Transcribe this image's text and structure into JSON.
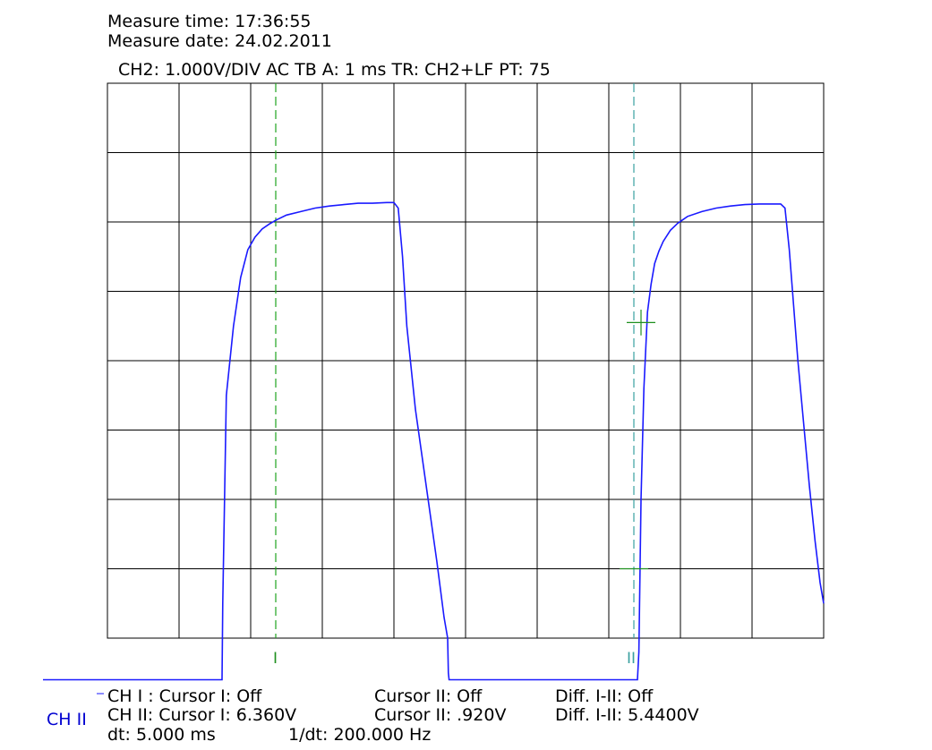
{
  "header": {
    "measure_time": "Measure time: 17:36:55",
    "measure_date": "Measure date: 24.02.2011",
    "settings": "CH2: 1.000V/DIV AC   TB A: 1 ms  TR: CH2+LF  PT: 75"
  },
  "channel_tag": "CH II",
  "cursor_marks": {
    "cursor_1": "I",
    "cursor_2": "II"
  },
  "readout": {
    "ch1_label": "CH I :  Cursor I: Off",
    "ch1_cursor2": "Cursor II: Off",
    "ch1_diff": "Diff. I-II: Off",
    "ch2_label": "CH II:  Cursor I: 6.360V",
    "ch2_cursor2": "Cursor II: .920V",
    "ch2_diff": "Diff. I-II: 5.4400V",
    "dt": "dt: 5.000 ms",
    "inv_dt": "1/dt: 200.000 Hz"
  },
  "colors": {
    "trace": "#1a1aff",
    "grid": "#000000",
    "cursor_1": "#1fa31f",
    "cursor_2": "#3aa0a0",
    "cursor_cross": "#1f8f1f",
    "channel_text": "#0000d0"
  },
  "chart_data": {
    "type": "line",
    "x_divisions": 10,
    "y_divisions": 8,
    "x_range_div": [
      0,
      10
    ],
    "y_range_div": [
      -4,
      4
    ],
    "grid": true,
    "series": [
      {
        "x": [
          -1.6,
          1.6,
          1.61,
          1.66,
          1.76,
          1.86,
          1.96,
          2.06,
          2.16,
          2.26,
          2.36,
          2.5,
          2.7,
          2.9,
          3.1,
          3.3,
          3.5,
          3.7,
          3.9,
          4.0,
          4.06,
          4.12,
          4.18,
          4.3,
          4.45,
          4.6,
          4.7,
          4.75,
          4.76,
          4.77,
          7.4,
          7.42,
          7.45,
          7.49,
          7.54,
          7.59,
          7.64,
          7.7,
          7.76,
          7.86,
          7.96,
          8.1,
          8.3,
          8.5,
          8.7,
          8.9,
          9.1,
          9.3,
          9.4,
          9.46,
          9.52,
          9.58,
          9.64,
          9.72,
          9.8,
          9.88,
          9.95,
          10.0
        ],
        "y": [
          -4.6,
          -4.6,
          -3.5,
          -0.5,
          0.5,
          1.2,
          1.6,
          1.78,
          1.9,
          1.97,
          2.03,
          2.1,
          2.15,
          2.2,
          2.23,
          2.25,
          2.27,
          2.27,
          2.28,
          2.28,
          2.2,
          1.5,
          0.5,
          -0.7,
          -1.8,
          -2.9,
          -3.7,
          -4.0,
          -4.5,
          -4.6,
          -4.6,
          -4.2,
          -2.0,
          -0.4,
          0.7,
          1.1,
          1.4,
          1.58,
          1.72,
          1.88,
          1.98,
          2.08,
          2.15,
          2.2,
          2.23,
          2.25,
          2.26,
          2.26,
          2.26,
          2.2,
          1.6,
          0.8,
          0.0,
          -0.9,
          -1.8,
          -2.6,
          -3.2,
          -3.5
        ]
      }
    ],
    "cursors": {
      "ch2_cursor_1_volts": 6.36,
      "ch2_cursor_2_volts": 0.92,
      "cursor_1_x_div": 2.35,
      "cursor_2_x_div": 7.35
    }
  }
}
